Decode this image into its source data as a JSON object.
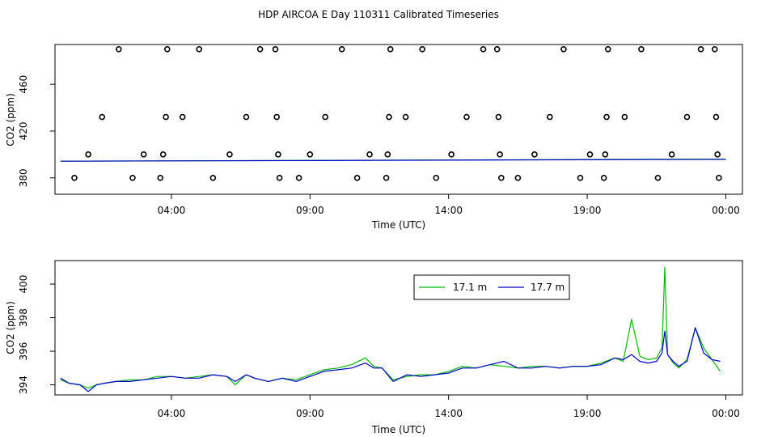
{
  "page_title": "HDP AIRCOA E  Day 110311  Calibrated Timeseries",
  "colors": {
    "series_17_1": "#00bb00",
    "series_17_7": "#0000cc",
    "axes": "#000000"
  },
  "chart_data": [
    {
      "type": "scatter",
      "xlabel": "Time (UTC)",
      "ylabel": "CO2 (ppm)",
      "x_ticks": [
        4,
        9,
        14,
        19,
        24
      ],
      "x_tick_labels": [
        "04:00",
        "09:00",
        "14:00",
        "19:00",
        "00:00"
      ],
      "xlim": [
        -0.2,
        24.6
      ],
      "y_ticks": [
        380,
        420,
        460
      ],
      "y_tick_labels": [
        "380",
        "420",
        "460"
      ],
      "ylim": [
        366,
        494
      ],
      "grid": false,
      "outliers": [
        {
          "x": 0.5,
          "y": 380
        },
        {
          "x": 1.0,
          "y": 400
        },
        {
          "x": 1.5,
          "y": 432
        },
        {
          "x": 2.1,
          "y": 490
        },
        {
          "x": 2.6,
          "y": 380
        },
        {
          "x": 3.0,
          "y": 400
        },
        {
          "x": 3.6,
          "y": 380
        },
        {
          "x": 3.7,
          "y": 400
        },
        {
          "x": 3.8,
          "y": 432
        },
        {
          "x": 3.85,
          "y": 490
        },
        {
          "x": 4.4,
          "y": 432
        },
        {
          "x": 5.0,
          "y": 490
        },
        {
          "x": 5.5,
          "y": 380
        },
        {
          "x": 6.1,
          "y": 400
        },
        {
          "x": 6.7,
          "y": 432
        },
        {
          "x": 7.2,
          "y": 490
        },
        {
          "x": 7.75,
          "y": 490
        },
        {
          "x": 7.8,
          "y": 432
        },
        {
          "x": 7.85,
          "y": 400
        },
        {
          "x": 7.9,
          "y": 380
        },
        {
          "x": 8.6,
          "y": 380
        },
        {
          "x": 9.0,
          "y": 400
        },
        {
          "x": 9.55,
          "y": 432
        },
        {
          "x": 10.15,
          "y": 490
        },
        {
          "x": 10.7,
          "y": 380
        },
        {
          "x": 11.15,
          "y": 400
        },
        {
          "x": 11.75,
          "y": 380
        },
        {
          "x": 11.8,
          "y": 400
        },
        {
          "x": 11.85,
          "y": 432
        },
        {
          "x": 11.9,
          "y": 490
        },
        {
          "x": 12.45,
          "y": 432
        },
        {
          "x": 13.05,
          "y": 490
        },
        {
          "x": 13.55,
          "y": 380
        },
        {
          "x": 14.1,
          "y": 400
        },
        {
          "x": 14.65,
          "y": 432
        },
        {
          "x": 15.25,
          "y": 490
        },
        {
          "x": 15.75,
          "y": 490
        },
        {
          "x": 15.8,
          "y": 432
        },
        {
          "x": 15.85,
          "y": 400
        },
        {
          "x": 15.9,
          "y": 380
        },
        {
          "x": 16.5,
          "y": 380
        },
        {
          "x": 17.1,
          "y": 400
        },
        {
          "x": 17.65,
          "y": 432
        },
        {
          "x": 18.15,
          "y": 490
        },
        {
          "x": 18.75,
          "y": 380
        },
        {
          "x": 19.1,
          "y": 400
        },
        {
          "x": 19.6,
          "y": 380
        },
        {
          "x": 19.65,
          "y": 400
        },
        {
          "x": 19.7,
          "y": 432
        },
        {
          "x": 19.75,
          "y": 490
        },
        {
          "x": 20.35,
          "y": 432
        },
        {
          "x": 20.95,
          "y": 490
        },
        {
          "x": 21.55,
          "y": 380
        },
        {
          "x": 22.05,
          "y": 400
        },
        {
          "x": 22.6,
          "y": 432
        },
        {
          "x": 23.1,
          "y": 490
        },
        {
          "x": 23.6,
          "y": 490
        },
        {
          "x": 23.65,
          "y": 432
        },
        {
          "x": 23.7,
          "y": 400
        },
        {
          "x": 23.75,
          "y": 380
        }
      ],
      "series": [
        {
          "color": "#00bb00",
          "x": [
            0,
            24
          ],
          "y": [
            394.2,
            396.0
          ]
        },
        {
          "color": "#0000cc",
          "x": [
            0,
            24
          ],
          "y": [
            394.2,
            395.8
          ]
        }
      ]
    },
    {
      "type": "line",
      "xlabel": "Time (UTC)",
      "ylabel": "CO2 (ppm)",
      "x_ticks": [
        4,
        9,
        14,
        19,
        24
      ],
      "x_tick_labels": [
        "04:00",
        "09:00",
        "14:00",
        "19:00",
        "00:00"
      ],
      "xlim": [
        -0.2,
        24.6
      ],
      "y_ticks": [
        394,
        396,
        398,
        400
      ],
      "y_tick_labels": [
        "394",
        "396",
        "398",
        "400"
      ],
      "ylim": [
        393.4,
        401.4
      ],
      "grid": false,
      "legend": "top-center",
      "series": [
        {
          "name": "17.1 m",
          "color": "#00bb00",
          "x": [
            0,
            0.3,
            0.7,
            1.0,
            1.3,
            1.6,
            2.0,
            2.5,
            3.0,
            3.5,
            4.0,
            4.5,
            5.0,
            5.5,
            6.0,
            6.3,
            6.7,
            7.0,
            7.5,
            8.0,
            8.5,
            9.0,
            9.5,
            10.0,
            10.5,
            11.0,
            11.3,
            11.6,
            12.0,
            12.5,
            13.0,
            13.5,
            14.0,
            14.5,
            15.0,
            15.5,
            16.0,
            16.5,
            17.0,
            17.5,
            18.0,
            18.5,
            19.0,
            19.5,
            20.0,
            20.3,
            20.6,
            20.9,
            21.2,
            21.5,
            21.7,
            21.8,
            21.9,
            22.1,
            22.3,
            22.6,
            22.9,
            23.2,
            23.5,
            23.8
          ],
          "y": [
            394.3,
            394.1,
            394.0,
            393.8,
            394.0,
            394.1,
            394.2,
            394.3,
            394.3,
            394.5,
            394.5,
            394.4,
            394.5,
            394.6,
            394.5,
            394.0,
            394.6,
            394.4,
            394.2,
            394.4,
            394.3,
            394.6,
            394.9,
            395.0,
            395.2,
            395.6,
            395.1,
            395.0,
            394.3,
            394.5,
            394.6,
            394.6,
            394.8,
            395.1,
            395.0,
            395.2,
            395.1,
            395.0,
            395.1,
            395.1,
            395.0,
            395.1,
            395.1,
            395.3,
            395.6,
            395.4,
            397.9,
            395.7,
            395.5,
            395.6,
            396.2,
            401.0,
            395.8,
            395.3,
            395.0,
            395.5,
            397.4,
            396.2,
            395.5,
            394.8
          ]
        },
        {
          "name": "17.7 m",
          "color": "#0000cc",
          "x": [
            0,
            0.3,
            0.7,
            1.0,
            1.3,
            1.6,
            2.0,
            2.5,
            3.0,
            3.5,
            4.0,
            4.5,
            5.0,
            5.5,
            6.0,
            6.3,
            6.7,
            7.0,
            7.5,
            8.0,
            8.5,
            9.0,
            9.5,
            10.0,
            10.5,
            11.0,
            11.3,
            11.6,
            12.0,
            12.5,
            13.0,
            13.5,
            14.0,
            14.5,
            15.0,
            15.5,
            16.0,
            16.5,
            17.0,
            17.5,
            18.0,
            18.5,
            19.0,
            19.5,
            20.0,
            20.3,
            20.6,
            20.9,
            21.2,
            21.5,
            21.7,
            21.8,
            21.9,
            22.1,
            22.3,
            22.6,
            22.9,
            23.2,
            23.5,
            23.8
          ],
          "y": [
            394.4,
            394.1,
            394.0,
            393.6,
            394.0,
            394.1,
            394.2,
            394.2,
            394.3,
            394.4,
            394.5,
            394.4,
            394.4,
            394.6,
            394.5,
            394.2,
            394.6,
            394.4,
            394.2,
            394.4,
            394.2,
            394.5,
            394.8,
            394.9,
            395.0,
            395.3,
            395.0,
            395.0,
            394.2,
            394.6,
            394.5,
            394.6,
            394.7,
            395.0,
            395.0,
            395.2,
            395.4,
            395.0,
            395.0,
            395.1,
            395.0,
            395.1,
            395.1,
            395.2,
            395.6,
            395.5,
            395.8,
            395.4,
            395.3,
            395.4,
            395.9,
            397.2,
            395.8,
            395.4,
            395.1,
            395.4,
            397.4,
            395.9,
            395.5,
            395.4
          ]
        }
      ]
    }
  ]
}
